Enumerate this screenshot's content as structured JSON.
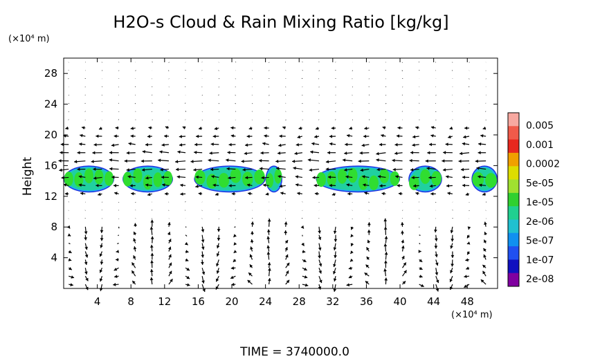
{
  "chart_data": {
    "type": "heatmap",
    "title": "H2O-s Cloud & Rain Mixing Ratio [kg/kg]",
    "ylabel": "Height",
    "y_unit": "(×10⁴ m)",
    "x_unit": "(×10⁴ m)",
    "x_ticks": [
      "4",
      "8",
      "12",
      "16",
      "20",
      "24",
      "28",
      "32",
      "36",
      "40",
      "44",
      "48"
    ],
    "y_ticks": [
      "4",
      "8",
      "12",
      "16",
      "20",
      "24",
      "28"
    ],
    "xlim": [
      0,
      51.6
    ],
    "ylim": [
      0,
      30
    ],
    "footer": "TIME = 3740000.0",
    "colorbar": {
      "labels": [
        "0.005",
        "0.001",
        "0.0002",
        "5e-05",
        "1e-05",
        "2e-06",
        "5e-07",
        "1e-07",
        "2e-08"
      ],
      "colors": [
        "#f7a8a0",
        "#f05a4a",
        "#e8281e",
        "#f0a000",
        "#dddd00",
        "#a0e030",
        "#30d030",
        "#20d090",
        "#20c0d0",
        "#1090f0",
        "#2050f0",
        "#1010c0",
        "#8000a0"
      ]
    },
    "cloud_layer": {
      "y_range": [
        12.5,
        16
      ],
      "x_extents": [
        [
          0,
          6
        ],
        [
          7,
          13
        ],
        [
          15.5,
          24
        ],
        [
          24,
          26
        ],
        [
          30,
          40
        ],
        [
          41,
          45
        ],
        [
          48.5,
          51.6
        ]
      ],
      "peak_category": "1e-05"
    },
    "wind_field": {
      "upper_layer_y": [
        12,
        21
      ],
      "upper_flow": "easterly",
      "lower_layer_y": [
        0,
        9
      ],
      "lower_flow": "overturning circulations",
      "stagnant_layer_y": [
        21,
        30
      ]
    }
  }
}
